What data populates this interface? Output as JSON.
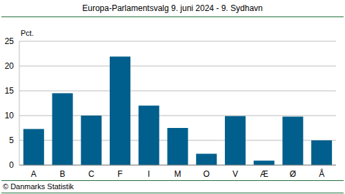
{
  "chart_data": {
    "type": "bar",
    "title": "Europa-Parlamentsvalg 9. juni 2024 - 9. Sydhavn",
    "y_label": "Pct.",
    "source": "© Danmarks Statistik",
    "categories": [
      "A",
      "B",
      "C",
      "F",
      "I",
      "M",
      "O",
      "V",
      "Æ",
      "Ø",
      "Å"
    ],
    "values": [
      7.3,
      14.5,
      10.0,
      21.9,
      12.0,
      7.5,
      2.3,
      9.9,
      0.9,
      9.8,
      5.0
    ],
    "color": "#005f8c",
    "ylim": [
      0,
      25
    ],
    "yticks": [
      0,
      5,
      10,
      15,
      20,
      25
    ],
    "grid": true
  }
}
